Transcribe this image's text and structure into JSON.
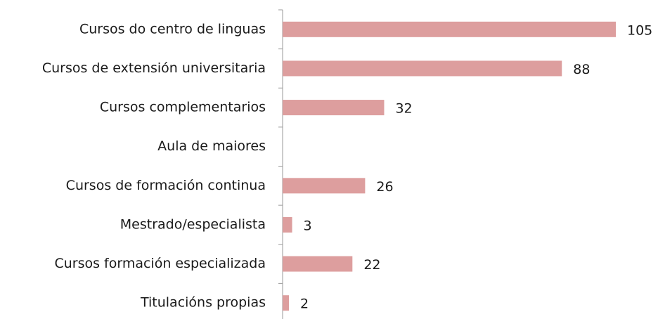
{
  "chart_data": {
    "type": "hbar",
    "categories": [
      "Cursos do centro de linguas",
      "Cursos de extensión universitaria",
      "Cursos complementarios",
      "Aula de maiores",
      "Cursos de formación continua",
      "Mestrado/especialista",
      "Cursos formación especializada",
      "Titulacións propias"
    ],
    "values": [
      105,
      88,
      32,
      null,
      26,
      3,
      22,
      2
    ],
    "color": "#dd9e9e",
    "xlim": [
      0,
      105
    ]
  }
}
